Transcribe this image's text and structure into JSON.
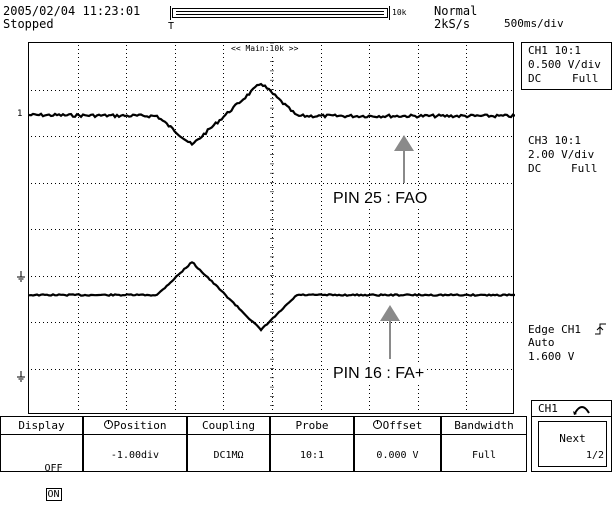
{
  "header": {
    "datetime": "2005/02/04 11:23:01",
    "status": "Stopped",
    "record_length": "10k",
    "trigger_mode": "Normal",
    "sample_rate": "2kS/s",
    "timebase": "500ms/div"
  },
  "screen": {
    "zoom_label": "<< Main:10k >>"
  },
  "annotations": {
    "pin25": "PIN 25 : FAO",
    "pin16": "PIN 16 : FA+"
  },
  "channels": {
    "ch1": {
      "title": "CH1 10:1",
      "scale": "0.500 V/div",
      "coupling": "DC",
      "bandwidth": "Full"
    },
    "ch3": {
      "title": "CH3 10:1",
      "scale": "2.00 V/div",
      "coupling": "DC",
      "bandwidth": "Full"
    }
  },
  "trigger": {
    "type": "Edge CH1",
    "mode": "Auto",
    "level": "1.600 V"
  },
  "softkeys": {
    "channel_tab": "CH1",
    "display": {
      "title": "Display",
      "off": "OFF",
      "on": "ON"
    },
    "position": {
      "title": "Position",
      "value": "-1.00div"
    },
    "coupling": {
      "title": "Coupling",
      "value": "DC1MΩ"
    },
    "probe": {
      "title": "Probe",
      "value": "10:1"
    },
    "offset": {
      "title": "Offset",
      "value": "0.000 V"
    },
    "bandwidth": {
      "title": "Bandwidth",
      "value": "Full"
    },
    "next": {
      "title": "Next",
      "page": "1/2"
    }
  },
  "colors": {
    "trace": "#000000",
    "grid": "#000000",
    "background": "#ffffff"
  }
}
